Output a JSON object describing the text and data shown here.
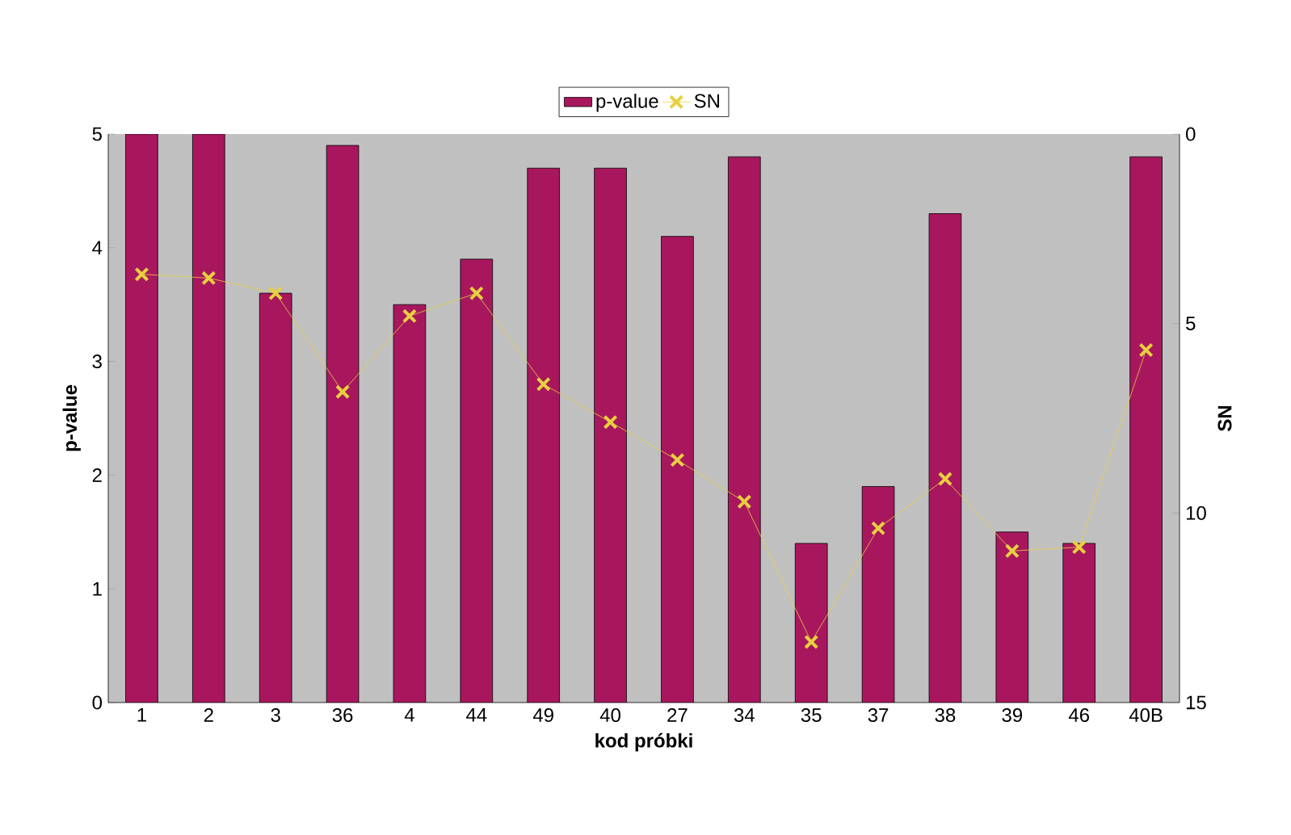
{
  "chart_data": {
    "type": "bar",
    "xlabel": "kod próbki",
    "ylabel": "p-value",
    "y2label": "SN",
    "categories": [
      "1",
      "2",
      "3",
      "36",
      "4",
      "44",
      "49",
      "40",
      "27",
      "34",
      "35",
      "37",
      "38",
      "39",
      "46",
      "40B"
    ],
    "series": [
      {
        "name": "p-value",
        "color": "#a8175e",
        "values": [
          5.0,
          5.0,
          3.6,
          4.9,
          3.5,
          3.9,
          4.7,
          4.7,
          4.1,
          4.8,
          1.4,
          1.9,
          4.3,
          1.5,
          1.4,
          4.8
        ]
      },
      {
        "name": "SN",
        "type": "line",
        "axis": "y2",
        "color": "#e8d040",
        "marker": "cross",
        "line_style": "solid",
        "values": [
          3.7,
          3.8,
          4.2,
          6.8,
          4.8,
          4.2,
          6.6,
          7.6,
          8.6,
          9.7,
          13.4,
          10.4,
          9.1,
          11.0,
          10.9,
          5.7
        ]
      }
    ],
    "ylim": [
      0,
      5
    ],
    "yticks": [
      0,
      1,
      2,
      3,
      4,
      5
    ],
    "y2lim": [
      15,
      0
    ],
    "y2ticks": [
      0,
      5,
      10,
      15
    ],
    "grid": false,
    "legend": "top"
  }
}
